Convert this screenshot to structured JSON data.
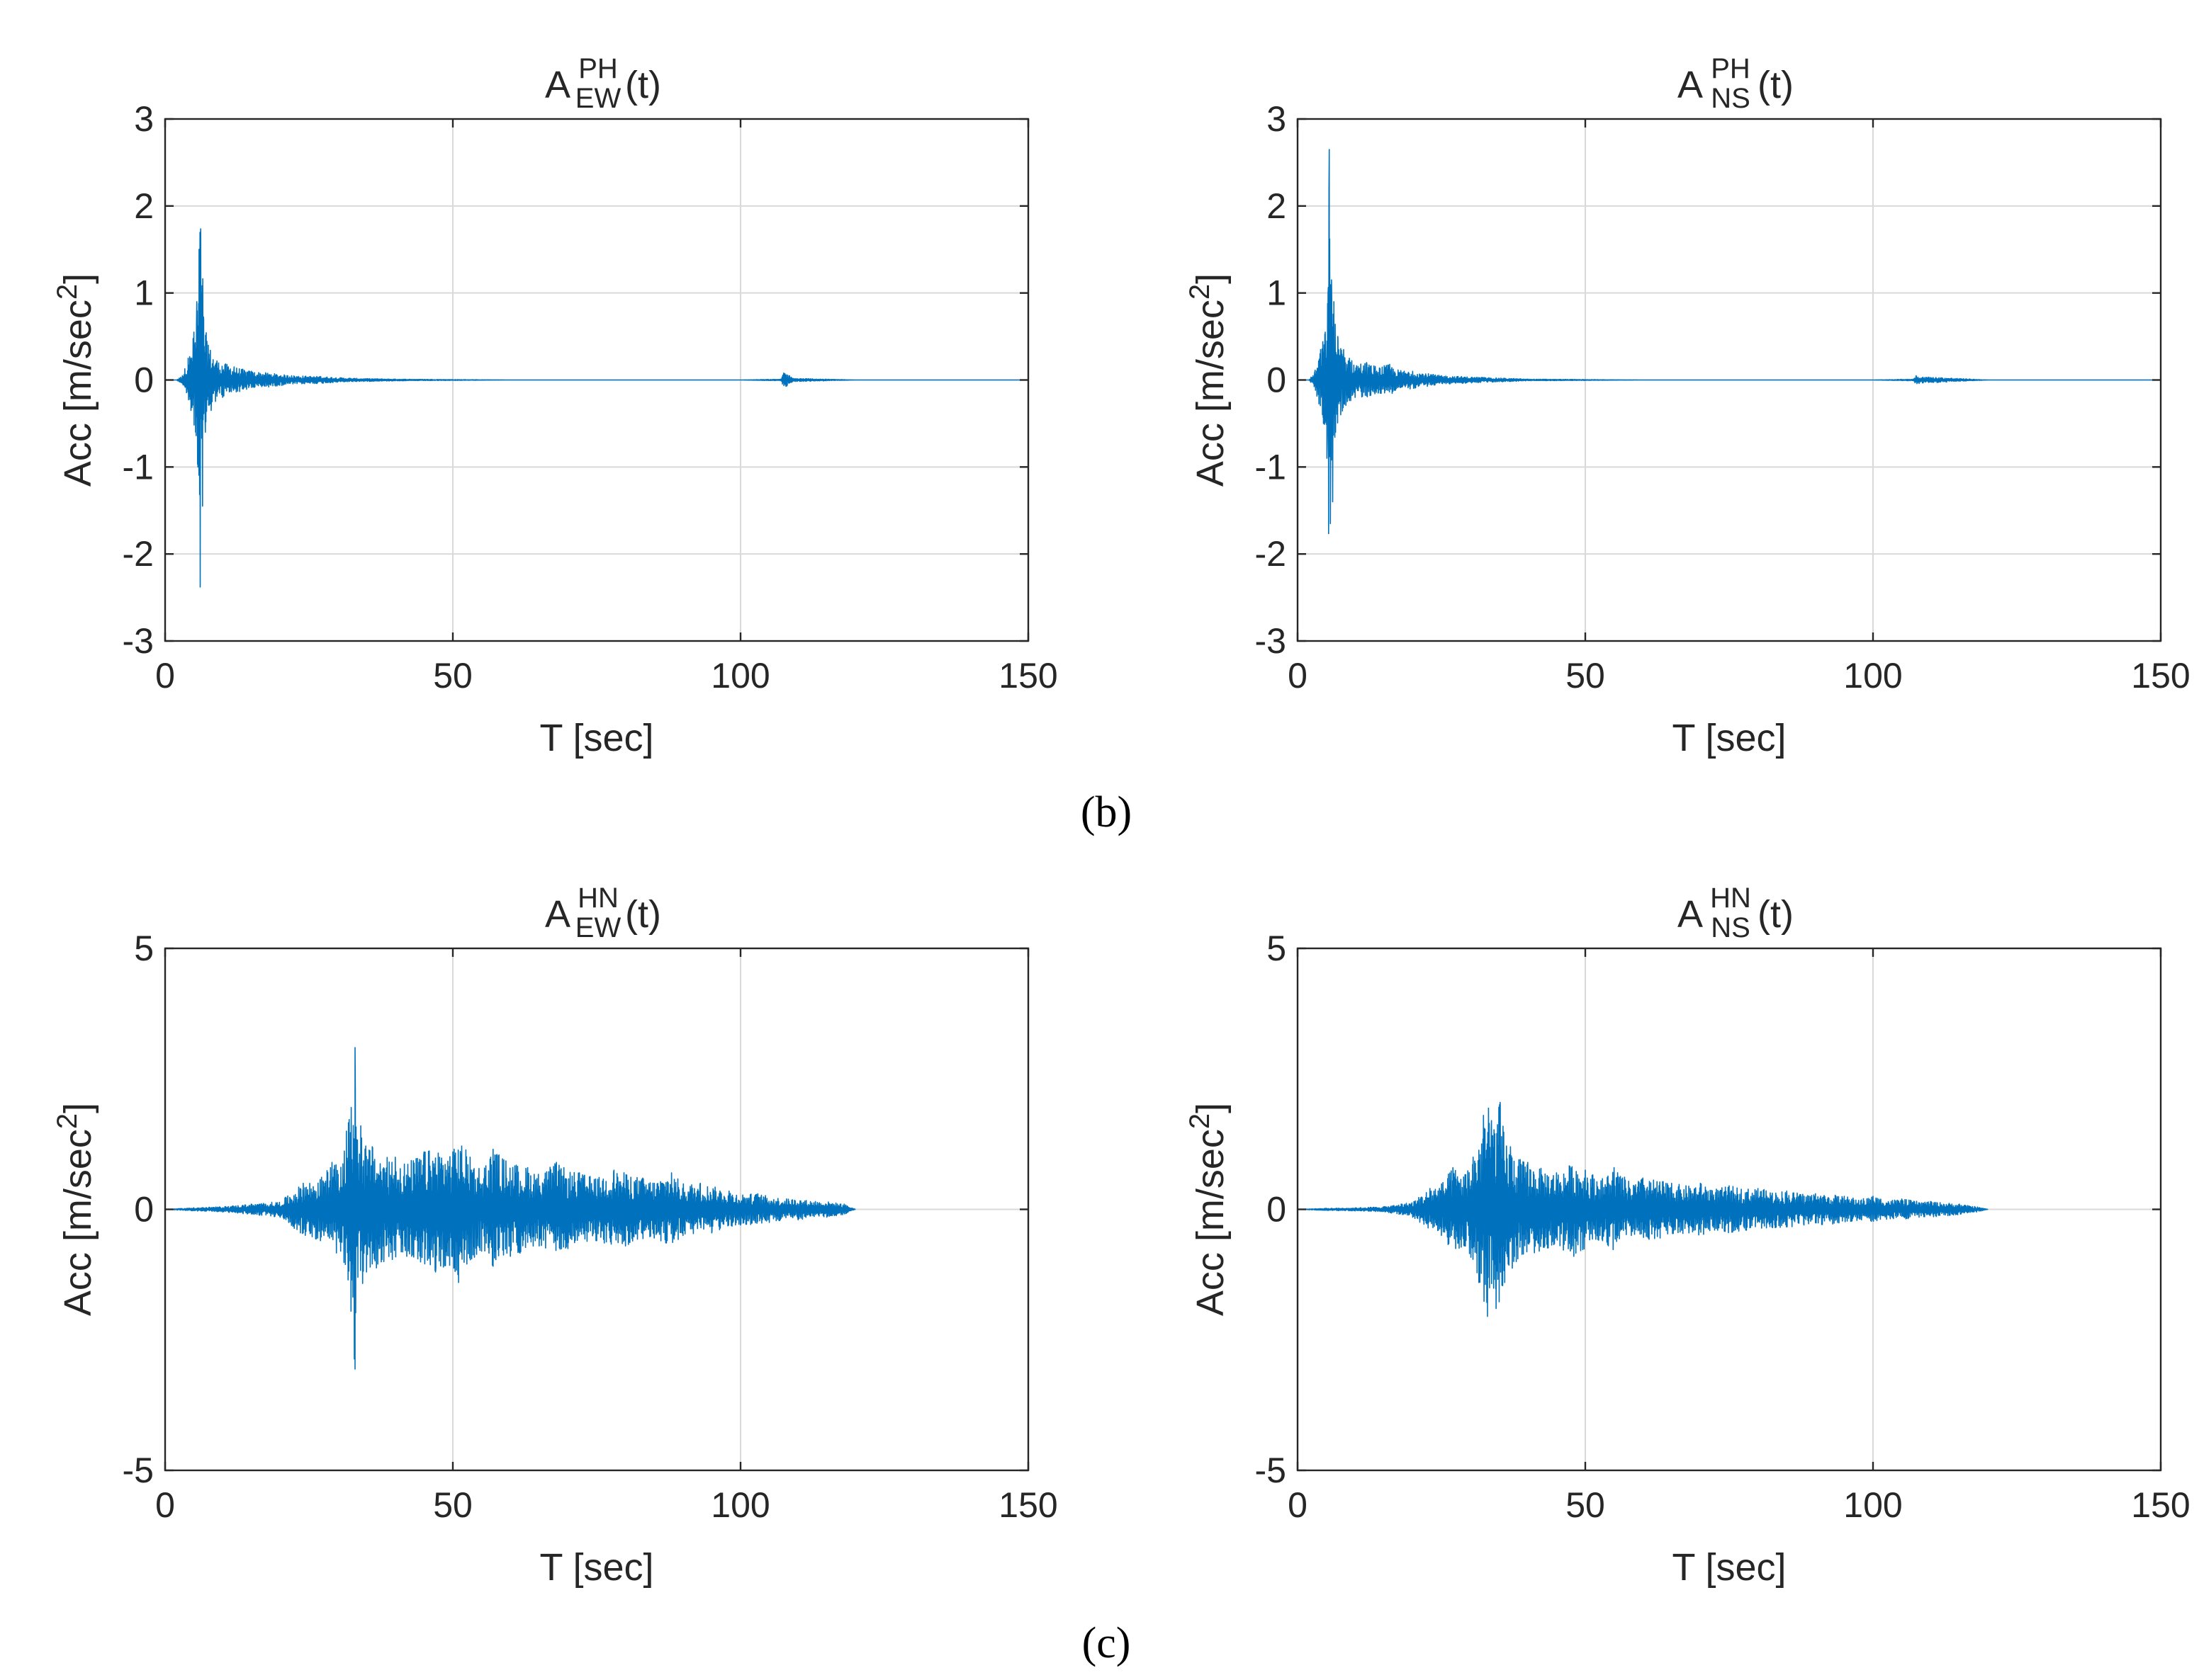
{
  "chart_data": [
    {
      "type": "line",
      "group": "b",
      "title": {
        "base": "A",
        "sup": "PH",
        "sub": "EW",
        "suffix": "(t)"
      },
      "xlabel": "T [sec]",
      "ylabel": {
        "text": "Acc [m/sec",
        "sup": "2",
        "close": "]"
      },
      "xlim": [
        0,
        150
      ],
      "ylim": [
        -3,
        3
      ],
      "xticks": [
        0,
        50,
        100,
        150
      ],
      "xtick_labels": [
        "0",
        "50",
        "100",
        "150"
      ],
      "yticks": [
        -3,
        -2,
        -1,
        0,
        1,
        2,
        3
      ],
      "ytick_labels": [
        "-3",
        "-2",
        "-1",
        "0",
        "1",
        "2",
        "3"
      ],
      "grid": true,
      "color": "#0072BD",
      "series": [
        {
          "name": "A_EW^PH(t)",
          "x": [
            0,
            2,
            3,
            4,
            4.5,
            5,
            5.3,
            5.5,
            5.7,
            5.9,
            6.1,
            6.3,
            6.5,
            6.7,
            7,
            7.5,
            8,
            9,
            10,
            12,
            15,
            18,
            22,
            27,
            32,
            40,
            60,
            80,
            100,
            107,
            107.5,
            108,
            108.5,
            109,
            120,
            140,
            150
          ],
          "y": [
            0,
            0,
            0.05,
            0.25,
            -0.35,
            0.55,
            -0.6,
            0.9,
            -1.0,
            1.5,
            -2.38,
            1.0,
            -1.45,
            0.7,
            -0.6,
            0.4,
            -0.35,
            0.22,
            -0.2,
            0.15,
            0.1,
            -0.08,
            0.05,
            0.04,
            0.02,
            0.01,
            0,
            0,
            0,
            0.01,
            0.08,
            -0.07,
            0.05,
            -0.02,
            0,
            0,
            0
          ]
        }
      ]
    },
    {
      "type": "line",
      "group": "b",
      "title": {
        "base": "A",
        "sup": "PH",
        "sub": "NS",
        "suffix": "(t)"
      },
      "xlabel": "T [sec]",
      "ylabel": {
        "text": "Acc [m/sec",
        "sup": "2",
        "close": "]"
      },
      "xlim": [
        0,
        150
      ],
      "ylim": [
        -3,
        3
      ],
      "xticks": [
        0,
        50,
        100,
        150
      ],
      "xtick_labels": [
        "0",
        "50",
        "100",
        "150"
      ],
      "yticks": [
        -3,
        -2,
        -1,
        0,
        1,
        2,
        3
      ],
      "ytick_labels": [
        "-3",
        "-2",
        "-1",
        "0",
        "1",
        "2",
        "3"
      ],
      "grid": true,
      "color": "#0072BD",
      "series": [
        {
          "name": "A_NS^PH(t)",
          "x": [
            0,
            2,
            3,
            4,
            4.5,
            4.8,
            5.1,
            5.3,
            5.5,
            5.7,
            5.9,
            6.1,
            6.3,
            6.6,
            7,
            7.5,
            8,
            9,
            10,
            12,
            14,
            16,
            17,
            20,
            25,
            32,
            40,
            60,
            80,
            100,
            107,
            107.5,
            108,
            120,
            140,
            150
          ],
          "y": [
            0,
            0,
            0.1,
            0.35,
            -0.5,
            0.55,
            -0.9,
            1.0,
            2.65,
            -1.65,
            1.15,
            -1.4,
            0.9,
            -0.6,
            0.5,
            -0.4,
            0.35,
            0.25,
            -0.2,
            0.2,
            -0.15,
            0.18,
            -0.12,
            0.1,
            0.05,
            0.03,
            0.01,
            0,
            0,
            0,
            0.01,
            0.05,
            -0.04,
            0,
            0,
            0
          ]
        }
      ]
    },
    {
      "type": "line",
      "group": "c",
      "title": {
        "base": "A",
        "sup": "HN",
        "sub": "EW",
        "suffix": "(t)"
      },
      "xlabel": "T [sec]",
      "ylabel": {
        "text": "Acc [m/sec",
        "sup": "2",
        "close": "]"
      },
      "xlim": [
        0,
        150
      ],
      "ylim": [
        -5,
        5
      ],
      "xticks": [
        0,
        50,
        100,
        150
      ],
      "xtick_labels": [
        "0",
        "50",
        "100",
        "150"
      ],
      "yticks": [
        -5,
        0,
        5
      ],
      "ytick_labels": [
        "-5",
        "0",
        "5"
      ],
      "grid": true,
      "color": "#0072BD",
      "series": [
        {
          "name": "A_EW^HN(t)",
          "x": [
            0,
            5,
            10,
            15,
            20,
            24,
            27,
            29,
            30.5,
            31.5,
            32.3,
            33,
            33.5,
            34,
            35,
            36,
            38,
            40,
            42,
            45,
            47,
            50,
            51,
            53,
            55,
            57,
            60,
            63,
            65,
            68,
            70,
            72,
            75,
            78,
            80,
            83,
            85,
            88,
            90,
            93,
            95,
            98,
            100,
            103,
            105,
            108,
            110,
            113,
            115,
            118,
            120
          ],
          "y": [
            0,
            0.03,
            -0.05,
            0.1,
            -0.15,
            0.5,
            -0.6,
            0.9,
            -0.8,
            1.5,
            -1.95,
            3.1,
            -1.3,
            1.6,
            -1.2,
            1.2,
            -1.0,
            1.0,
            -0.9,
            1.1,
            -1.2,
            1.1,
            -1.4,
            1.0,
            -0.8,
            1.15,
            -0.9,
            0.8,
            -0.7,
            0.9,
            -0.75,
            0.7,
            -0.6,
            0.75,
            -0.7,
            0.6,
            -0.55,
            0.7,
            -0.5,
            0.5,
            -0.45,
            0.35,
            -0.3,
            0.3,
            -0.25,
            0.2,
            -0.2,
            0.15,
            -0.15,
            0.1,
            0
          ]
        }
      ]
    },
    {
      "type": "line",
      "group": "c",
      "title": {
        "base": "A",
        "sup": "HN",
        "sub": "NS",
        "suffix": "(t)"
      },
      "xlabel": "T [sec]",
      "ylabel": {
        "text": "Acc [m/sec",
        "sup": "2",
        "close": "]"
      },
      "xlim": [
        0,
        150
      ],
      "ylim": [
        -5,
        5
      ],
      "xticks": [
        0,
        50,
        100,
        150
      ],
      "xtick_labels": [
        "0",
        "50",
        "100",
        "150"
      ],
      "yticks": [
        -5,
        0,
        5
      ],
      "ytick_labels": [
        "-5",
        "0",
        "5"
      ],
      "grid": true,
      "color": "#0072BD",
      "series": [
        {
          "name": "A_NS^HN(t)",
          "x": [
            0,
            5,
            10,
            15,
            18,
            20,
            23,
            25,
            27,
            29,
            30.5,
            31.5,
            32.3,
            33,
            33.7,
            34.5,
            35.2,
            36,
            37,
            38,
            40,
            42,
            45,
            48,
            50,
            53,
            55,
            58,
            60,
            63,
            65,
            68,
            70,
            73,
            75,
            78,
            80,
            83,
            85,
            88,
            90,
            93,
            95,
            98,
            100,
            103,
            105,
            108,
            110,
            113,
            115,
            118,
            120
          ],
          "y": [
            0,
            0.02,
            -0.03,
            0.05,
            0.1,
            -0.15,
            0.4,
            -0.5,
            0.8,
            -0.7,
            1.0,
            -1.4,
            1.8,
            -2.05,
            1.7,
            -1.9,
            2.05,
            -1.4,
            1.2,
            -1.0,
            0.9,
            -0.8,
            0.7,
            -0.9,
            0.75,
            -0.6,
            0.8,
            -0.5,
            0.6,
            -0.55,
            0.5,
            -0.45,
            0.5,
            -0.4,
            0.45,
            -0.4,
            0.4,
            -0.35,
            0.35,
            -0.3,
            0.3,
            -0.28,
            0.25,
            -0.2,
            0.25,
            -0.18,
            0.2,
            -0.15,
            0.15,
            -0.12,
            0.1,
            -0.05,
            0
          ]
        }
      ]
    }
  ],
  "captions": {
    "b": "(b)",
    "c": "(c)"
  }
}
